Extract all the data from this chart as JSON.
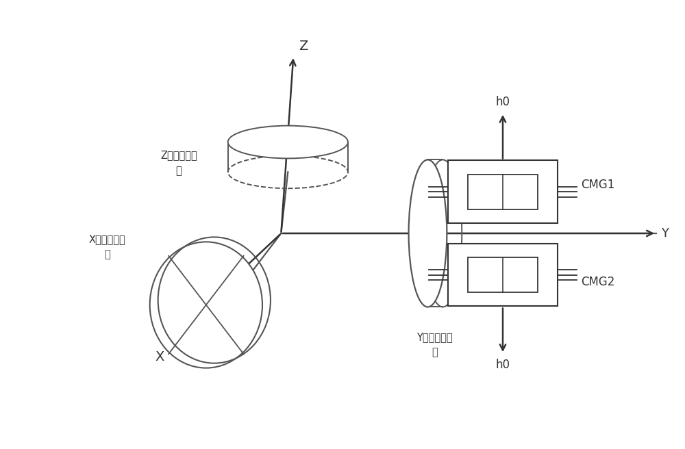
{
  "bg_color": "#ffffff",
  "line_color": "#555555",
  "dark_color": "#333333",
  "fig_width": 10.0,
  "fig_height": 6.56,
  "axis_z_label": "Z",
  "axis_x_label": "X",
  "axis_y_label": "Y",
  "label_z_wheel": "Z向反作用飞\n轮",
  "label_x_wheel": "X向反作用飞\n轮",
  "label_y_wheel": "Y向反作用飞\n轮",
  "label_cmg1": "CMG1",
  "label_cmg2": "CMG2",
  "label_h0_top": "h0",
  "label_h0_bottom": "h0"
}
